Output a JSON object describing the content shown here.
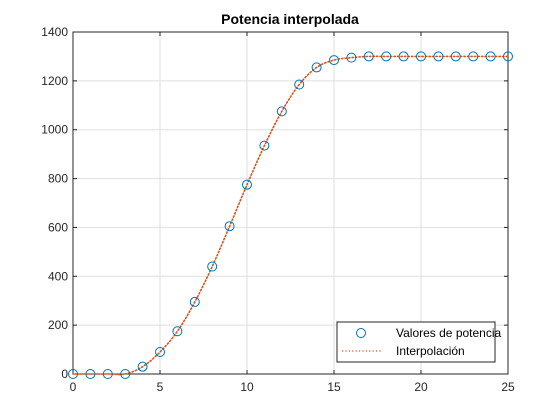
{
  "chart_data": {
    "type": "line",
    "title": "Potencia interpolada",
    "xlabel": "",
    "ylabel": "",
    "xlim": [
      0,
      25
    ],
    "ylim": [
      0,
      1400
    ],
    "x_ticks": [
      0,
      5,
      10,
      15,
      20,
      25
    ],
    "y_ticks": [
      0,
      200,
      400,
      600,
      800,
      1000,
      1200,
      1400
    ],
    "grid": true,
    "legend_position": "bottom-right",
    "series": [
      {
        "name": "Valores de potencia",
        "marker": "circle",
        "color": "#0072BD",
        "x": [
          0,
          1,
          2,
          3,
          4,
          5,
          6,
          7,
          8,
          9,
          10,
          11,
          12,
          13,
          14,
          15,
          16,
          17,
          18,
          19,
          20,
          21,
          22,
          23,
          24,
          25
        ],
        "y": [
          0,
          0,
          0,
          0,
          30,
          90,
          175,
          295,
          440,
          605,
          775,
          935,
          1075,
          1185,
          1255,
          1285,
          1295,
          1300,
          1300,
          1300,
          1300,
          1300,
          1300,
          1300,
          1300,
          1300
        ]
      },
      {
        "name": "Interpolación",
        "line_style": "dotted",
        "color": "#D95319",
        "x": [
          0,
          1,
          2,
          3,
          4,
          5,
          6,
          7,
          8,
          9,
          10,
          11,
          12,
          13,
          14,
          15,
          16,
          17,
          18,
          19,
          20,
          21,
          22,
          23,
          24,
          25
        ],
        "y": [
          0,
          0,
          0,
          0,
          30,
          90,
          175,
          295,
          440,
          605,
          775,
          935,
          1075,
          1185,
          1255,
          1285,
          1295,
          1300,
          1300,
          1300,
          1300,
          1300,
          1300,
          1300,
          1300,
          1300
        ]
      }
    ]
  }
}
